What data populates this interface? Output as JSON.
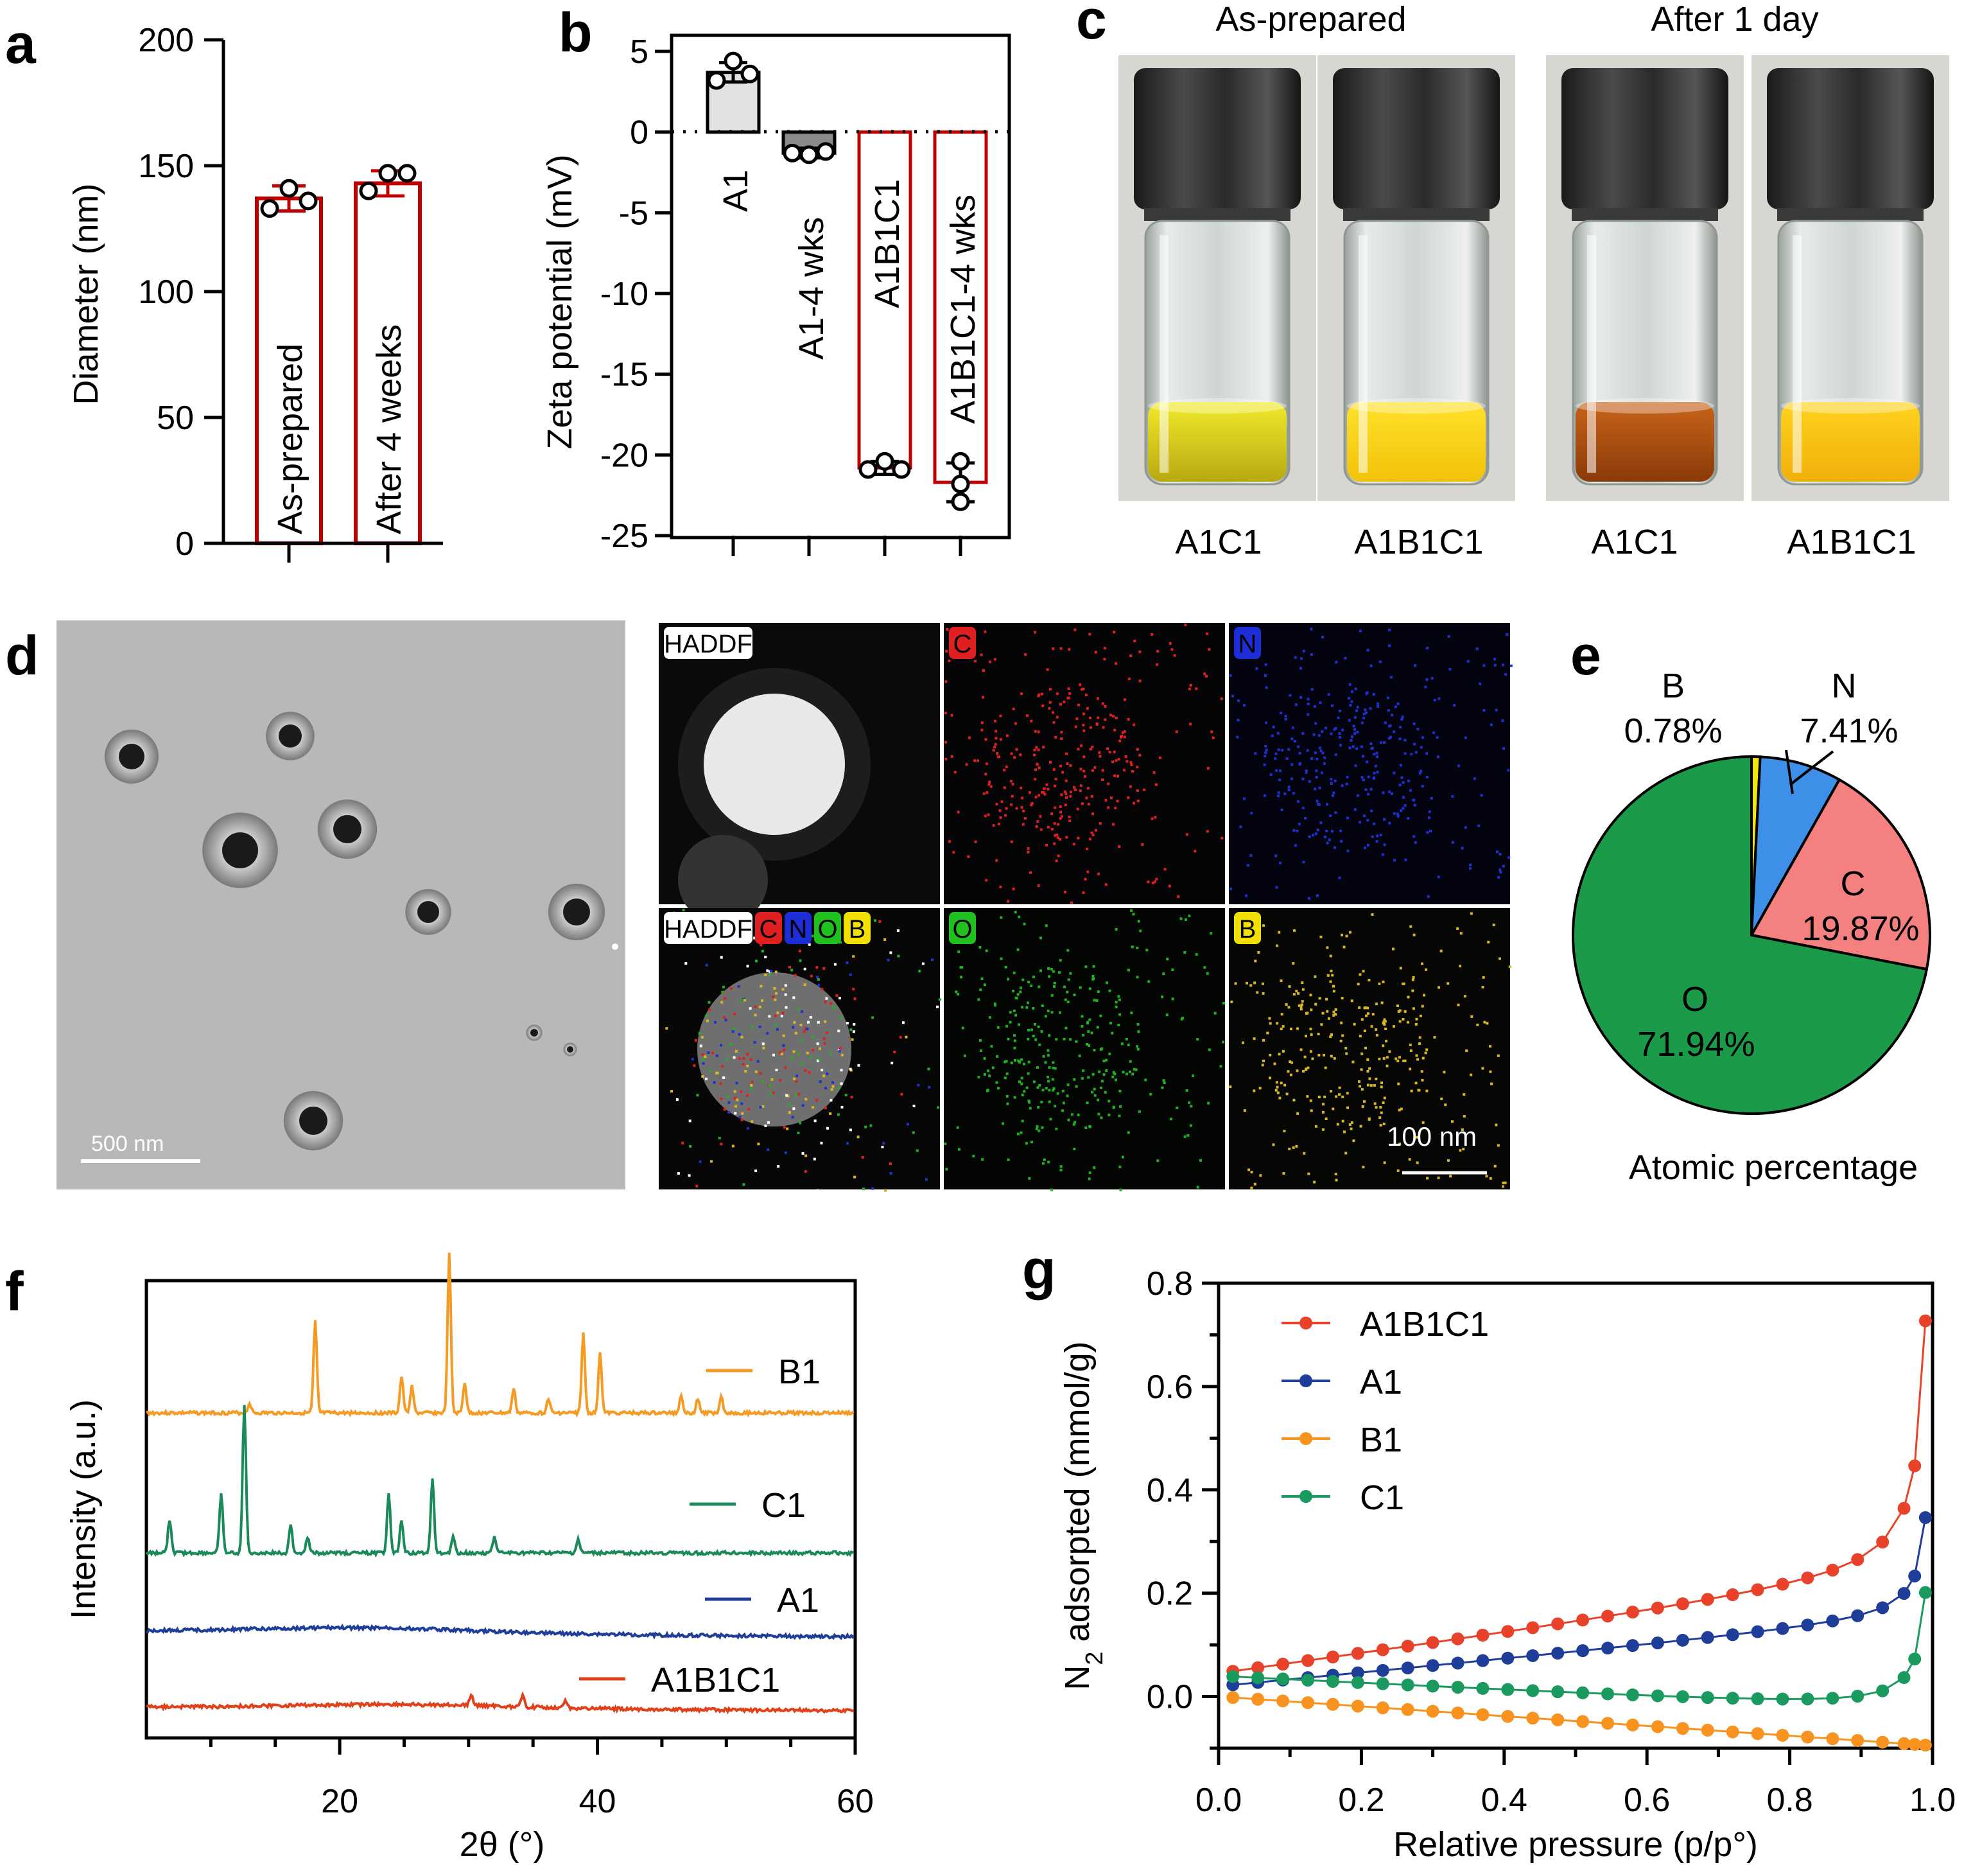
{
  "panels": {
    "a": {
      "label": "a",
      "chart_data": {
        "type": "bar",
        "categories": [
          "As-prepared",
          "After 4 weeks"
        ],
        "values": [
          137,
          143
        ],
        "errors": [
          5,
          5
        ],
        "points": [
          [
            133,
            141,
            136
          ],
          [
            140,
            147,
            147
          ]
        ],
        "ylabel": "Diameter (nm)",
        "ylim": [
          0,
          200
        ],
        "yticks": [
          "0",
          "50",
          "100",
          "150",
          "200"
        ],
        "bar_color": "#c00000"
      }
    },
    "b": {
      "label": "b",
      "chart_data": {
        "type": "bar",
        "categories": [
          "A1",
          "A1-4 wks",
          "A1B1C1",
          "A1B1C1-4 wks"
        ],
        "values": [
          3.7,
          -1.3,
          -20.8,
          -21.7
        ],
        "errors": [
          0.6,
          0.3,
          0.4,
          1.2
        ],
        "points": [
          [
            3.2,
            4.4,
            3.6
          ],
          [
            -1.3,
            -1.4,
            -1.2
          ],
          [
            -20.9,
            -20.4,
            -20.9
          ],
          [
            -20.4,
            -21.8,
            -22.9
          ]
        ],
        "ylabel": "Zeta potential (mV)",
        "ylim": [
          -25,
          5
        ],
        "yticks": [
          "5",
          "0",
          "-5",
          "-10",
          "-15",
          "-20",
          "-25"
        ]
      }
    },
    "c": {
      "label": "c",
      "headers": [
        "As-prepared",
        "After 1 day"
      ],
      "captions": [
        "A1C1",
        "A1B1C1",
        "A1C1",
        "A1B1C1"
      ]
    },
    "d": {
      "label": "d",
      "scale_tem": "500 nm",
      "map_labels": [
        "HADDF",
        "C",
        "N",
        "HADDF",
        "C",
        "N",
        "O",
        "B",
        "O",
        "B"
      ],
      "scale_map": "100 nm"
    },
    "e": {
      "label": "e",
      "chart_data": {
        "type": "pie",
        "slices": [
          {
            "name": "O",
            "value": 71.94,
            "label": "71.94%",
            "color": "#1b9a4a"
          },
          {
            "name": "B",
            "value": 0.78,
            "label": "0.78%",
            "color": "#f5e60a"
          },
          {
            "name": "N",
            "value": 7.41,
            "label": "7.41%",
            "color": "#3d8fe8"
          },
          {
            "name": "C",
            "value": 19.87,
            "label": "19.87%",
            "color": "#f48080"
          }
        ],
        "xlabel": "Atomic percentage"
      }
    },
    "f": {
      "label": "f",
      "chart_data": {
        "type": "line",
        "xlabel": "2θ (°)",
        "ylabel": "Intensity (a.u.)",
        "xlim": [
          5,
          60
        ],
        "xticks": [
          "20",
          "40",
          "60"
        ],
        "series": [
          {
            "name": "B1",
            "color": "#f59a23",
            "peaks": [
              [
                13,
                0.08
              ],
              [
                18.1,
                0.75
              ],
              [
                24.8,
                0.3
              ],
              [
                25.6,
                0.22
              ],
              [
                28.5,
                1.3
              ],
              [
                29.7,
                0.25
              ],
              [
                33.5,
                0.2
              ],
              [
                36.2,
                0.12
              ],
              [
                38.9,
                0.65
              ],
              [
                40.2,
                0.5
              ],
              [
                46.5,
                0.15
              ],
              [
                47.8,
                0.12
              ],
              [
                49.6,
                0.14
              ]
            ]
          },
          {
            "name": "C1",
            "color": "#1a8a5a",
            "peaks": [
              [
                6.8,
                0.25
              ],
              [
                10.8,
                0.45
              ],
              [
                12.6,
                1.1
              ],
              [
                16.2,
                0.2
              ],
              [
                17.5,
                0.12
              ],
              [
                23.8,
                0.45
              ],
              [
                24.8,
                0.25
              ],
              [
                27.2,
                0.55
              ],
              [
                28.8,
                0.12
              ],
              [
                32,
                0.12
              ],
              [
                38.5,
                0.1
              ]
            ]
          },
          {
            "name": "A1",
            "color": "#1f3e99",
            "peaks": []
          },
          {
            "name": "A1B1C1",
            "color": "#e0401a",
            "peaks": [
              [
                30.2,
                0.08
              ],
              [
                34.2,
                0.1
              ],
              [
                37.5,
                0.05
              ]
            ]
          }
        ]
      }
    },
    "g": {
      "label": "g",
      "chart_data": {
        "type": "line",
        "xlabel": "Relative pressure (p/p°)",
        "ylabel": "N2 adsorpted (mmol/g)",
        "ylabel_main": "N",
        "ylabel_sub": "2",
        "ylabel_rest": " adsorpted (mmol/g)",
        "xlim": [
          0,
          1
        ],
        "ylim": [
          -0.1,
          0.8
        ],
        "xticks": [
          "0.0",
          "0.2",
          "0.4",
          "0.6",
          "0.8",
          "1.0"
        ],
        "yticks": [
          "0.0",
          "0.2",
          "0.4",
          "0.6",
          "0.8"
        ],
        "series": [
          {
            "name": "A1B1C1",
            "color": "#e8432a"
          },
          {
            "name": "A1",
            "color": "#1f3e99"
          },
          {
            "name": "B1",
            "color": "#f7931e"
          },
          {
            "name": "C1",
            "color": "#1a9a5e"
          }
        ]
      }
    }
  }
}
